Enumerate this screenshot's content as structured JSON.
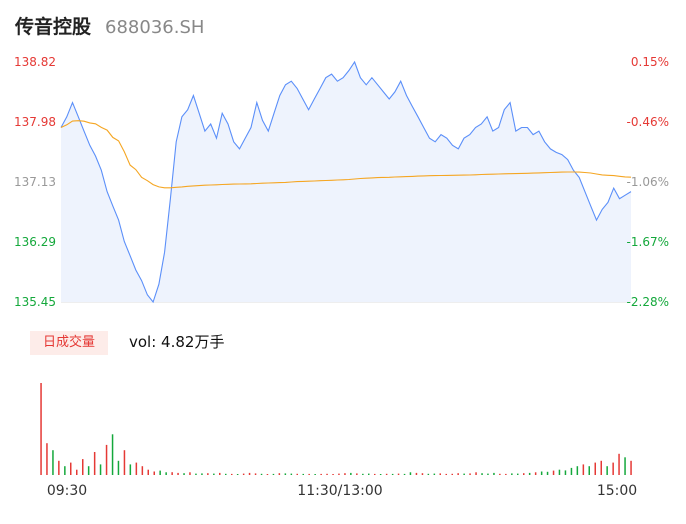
{
  "header": {
    "name": "传音控股",
    "code": "688036.SH"
  },
  "volume_panel": {
    "tag_label": "日成交量",
    "vol_prefix": "vol: ",
    "vol_value": "4.82万手"
  },
  "colors": {
    "price_line": "#5b8ff9",
    "avg_line": "#f5a623",
    "up": "#e53935",
    "down": "#14a83b",
    "area": "#eef3fd"
  },
  "chart_data": {
    "type": "line",
    "price_ylim": [
      135.45,
      138.82
    ],
    "price_ticks": [
      "138.82",
      "137.98",
      "137.13",
      "136.29",
      "135.45"
    ],
    "pct_ticks": [
      "0.15%",
      "-0.46%",
      "-1.06%",
      "-1.67%",
      "-2.28%"
    ],
    "time_labels": [
      "09:30",
      "11:30/13:00",
      "15:00"
    ],
    "series": [
      {
        "values": [
          137.9,
          138.05,
          138.25,
          138.05,
          137.85,
          137.65,
          137.5,
          137.3,
          137.0,
          136.8,
          136.6,
          136.3,
          136.1,
          135.9,
          135.75,
          135.55,
          135.45,
          135.7,
          136.15,
          136.9,
          137.7,
          138.05,
          138.15,
          138.35,
          138.1,
          137.85,
          137.95,
          137.75,
          138.1,
          137.95,
          137.7,
          137.6,
          137.75,
          137.9,
          138.25,
          138.0,
          137.85,
          138.1,
          138.35,
          138.5,
          138.55,
          138.45,
          138.3,
          138.15,
          138.3,
          138.45,
          138.6,
          138.65,
          138.55,
          138.6,
          138.7,
          138.82,
          138.6,
          138.5,
          138.6,
          138.5,
          138.4,
          138.3,
          138.4,
          138.55,
          138.35,
          138.2,
          138.05,
          137.9,
          137.75,
          137.7,
          137.8,
          137.75,
          137.65,
          137.6,
          137.75,
          137.8,
          137.9,
          137.95,
          138.05,
          137.85,
          137.9,
          138.15,
          138.25,
          137.85,
          137.9,
          137.9,
          137.8,
          137.85,
          137.7,
          137.6,
          137.55,
          137.52,
          137.45,
          137.3,
          137.2,
          137.0,
          136.8,
          136.6,
          136.75,
          136.85,
          137.05,
          136.9,
          136.95,
          137.0
        ],
        "volumes": [
          52000,
          18000,
          14000,
          8000,
          5000,
          7000,
          3000,
          9000,
          5000,
          13000,
          6000,
          17000,
          23000,
          8000,
          14000,
          6000,
          7000,
          5000,
          3000,
          2000,
          2500,
          1500,
          1600,
          1200,
          1000,
          1500,
          800,
          900,
          1000,
          800,
          1200,
          700,
          600,
          500,
          800,
          1200,
          900,
          700,
          500,
          600,
          1000,
          900,
          800,
          700,
          600,
          600,
          500,
          600,
          700,
          500,
          800,
          1000,
          1200,
          900,
          700,
          800,
          600,
          500,
          700,
          600,
          800,
          600,
          1500,
          1200,
          1000,
          700,
          800,
          900,
          600,
          700,
          1000,
          800,
          900,
          1500,
          1000,
          800,
          1200,
          700,
          600,
          900,
          800,
          1000,
          1200,
          1500,
          2000,
          1800,
          2500,
          3000,
          2600,
          4000,
          5000,
          6000,
          5000,
          7000,
          8000,
          5000,
          7000,
          12000,
          10000,
          8000
        ],
        "vol_up": [
          true,
          true,
          false,
          true,
          false,
          true,
          true,
          true,
          false,
          true,
          false,
          true,
          false,
          false,
          true,
          false,
          true,
          true,
          true,
          true,
          false,
          false,
          true,
          true,
          false,
          true,
          false,
          false,
          true,
          false,
          true,
          false,
          true,
          false,
          true,
          true,
          true,
          false,
          true,
          false,
          true,
          false,
          false,
          true,
          false,
          true,
          false,
          true,
          true,
          true,
          true,
          true,
          false,
          true,
          false,
          false,
          true,
          false,
          true,
          false,
          true,
          false,
          false,
          true,
          true,
          false,
          false,
          true,
          true,
          true,
          true,
          false,
          true,
          true,
          false,
          false,
          false,
          true,
          true,
          false,
          false,
          true,
          false,
          true,
          false,
          false,
          true,
          false,
          false,
          false,
          false,
          true,
          false,
          true,
          true,
          false,
          true,
          true,
          false,
          true
        ]
      }
    ]
  }
}
